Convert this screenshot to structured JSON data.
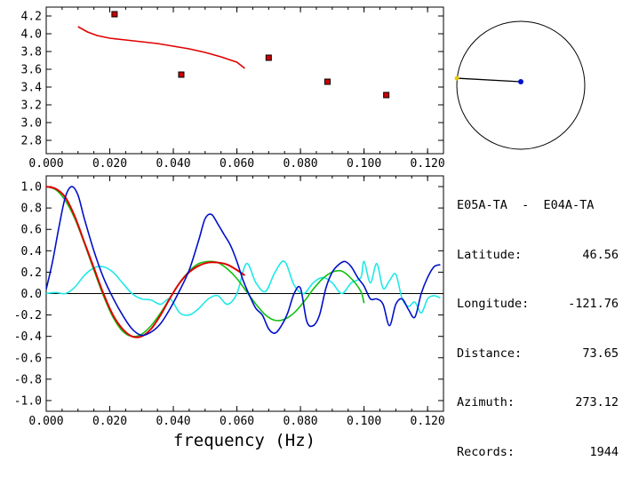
{
  "colors": {
    "red": "#e00000",
    "blue": "#0010c8",
    "green": "#10c010",
    "cyan": "#20e8e8",
    "marker_fill": "#cc0000",
    "azimuth_point": "#e8c800"
  },
  "chart_data": [
    {
      "type": "scatter",
      "description_ref": "top dispersion panel",
      "xlim": [
        0.0,
        0.125
      ],
      "ylim": [
        2.65,
        4.3
      ],
      "x_ticks": [
        "0.000",
        "0.020",
        "0.040",
        "0.060",
        "0.080",
        "0.100",
        "0.120"
      ],
      "y_ticks": [
        "2.8",
        "3.0",
        "3.2",
        "3.4",
        "3.6",
        "3.8",
        "4.0",
        "4.2"
      ],
      "series": [
        {
          "kind": "points",
          "color": "#cc0000",
          "x": [
            0.0215,
            0.0425,
            0.07,
            0.0885,
            0.107
          ],
          "y": [
            4.22,
            3.54,
            3.73,
            3.46,
            3.31
          ]
        },
        {
          "kind": "line",
          "color": "#e00000",
          "x": [
            0.01,
            0.013,
            0.016,
            0.02,
            0.025,
            0.03,
            0.035,
            0.04,
            0.045,
            0.05,
            0.055,
            0.06,
            0.0625
          ],
          "y": [
            4.08,
            4.02,
            3.98,
            3.95,
            3.93,
            3.91,
            3.89,
            3.86,
            3.83,
            3.79,
            3.74,
            3.68,
            3.61
          ]
        }
      ]
    },
    {
      "type": "line",
      "xlim": [
        0.0,
        0.125
      ],
      "ylim": [
        -1.1,
        1.1
      ],
      "x_ticks": [
        "0.000",
        "0.020",
        "0.040",
        "0.060",
        "0.080",
        "0.100",
        "0.120"
      ],
      "y_ticks": [
        "1.0",
        "0.8",
        "0.6",
        "0.4",
        "0.2",
        "0.0",
        "-0.2",
        "-0.4",
        "-0.6",
        "-0.8",
        "-1.0"
      ],
      "xlabel": "frequency (Hz)",
      "zero_line": true,
      "series": [
        {
          "color": "#20e8e8",
          "x": [
            0.0,
            0.003,
            0.006,
            0.009,
            0.012,
            0.015,
            0.018,
            0.021,
            0.024,
            0.027,
            0.03,
            0.033,
            0.036,
            0.039,
            0.042,
            0.045,
            0.048,
            0.051,
            0.054,
            0.057,
            0.06,
            0.063,
            0.066,
            0.069,
            0.072,
            0.075,
            0.078,
            0.081,
            0.084,
            0.087,
            0.09,
            0.093,
            0.096,
            0.099,
            0.1,
            0.102,
            0.104,
            0.106,
            0.108,
            0.11,
            0.112,
            0.114,
            0.116,
            0.118,
            0.12,
            0.122,
            0.124
          ],
          "y": [
            0.0,
            0.01,
            0.0,
            0.06,
            0.17,
            0.24,
            0.25,
            0.2,
            0.1,
            0.0,
            -0.05,
            -0.06,
            -0.1,
            -0.05,
            -0.18,
            -0.2,
            -0.14,
            -0.05,
            -0.02,
            -0.1,
            0.0,
            0.28,
            0.1,
            0.02,
            0.2,
            0.3,
            0.08,
            0.0,
            0.1,
            0.15,
            0.1,
            0.0,
            0.1,
            0.15,
            0.3,
            0.1,
            0.28,
            0.05,
            0.12,
            0.18,
            -0.05,
            -0.12,
            -0.08,
            -0.18,
            -0.05,
            -0.02,
            -0.04
          ]
        },
        {
          "color": "#10c010",
          "x": [
            0.0,
            0.003,
            0.006,
            0.009,
            0.012,
            0.015,
            0.018,
            0.021,
            0.024,
            0.027,
            0.03,
            0.033,
            0.036,
            0.039,
            0.042,
            0.045,
            0.048,
            0.051,
            0.054,
            0.057,
            0.06,
            0.063,
            0.066,
            0.069,
            0.072,
            0.075,
            0.078,
            0.081,
            0.084,
            0.087,
            0.09,
            0.093,
            0.096,
            0.099,
            0.1
          ],
          "y": [
            1.0,
            0.97,
            0.87,
            0.7,
            0.47,
            0.22,
            -0.02,
            -0.22,
            -0.35,
            -0.4,
            -0.38,
            -0.3,
            -0.18,
            -0.04,
            0.1,
            0.21,
            0.28,
            0.3,
            0.29,
            0.23,
            0.14,
            0.02,
            -0.1,
            -0.2,
            -0.25,
            -0.24,
            -0.18,
            -0.08,
            0.04,
            0.14,
            0.2,
            0.21,
            0.14,
            0.02,
            -0.09
          ]
        },
        {
          "color": "#e00000",
          "x": [
            0.0,
            0.003,
            0.006,
            0.009,
            0.012,
            0.015,
            0.018,
            0.021,
            0.024,
            0.027,
            0.03,
            0.033,
            0.036,
            0.039,
            0.042,
            0.045,
            0.048,
            0.051,
            0.054,
            0.057,
            0.06,
            0.0625
          ],
          "y": [
            1.0,
            0.98,
            0.9,
            0.72,
            0.48,
            0.24,
            0.0,
            -0.2,
            -0.33,
            -0.4,
            -0.4,
            -0.33,
            -0.2,
            -0.04,
            0.1,
            0.2,
            0.26,
            0.29,
            0.29,
            0.27,
            0.22,
            0.17
          ]
        },
        {
          "color": "#0010c8",
          "x": [
            0.0,
            0.002,
            0.004,
            0.006,
            0.008,
            0.01,
            0.012,
            0.015,
            0.018,
            0.021,
            0.024,
            0.027,
            0.03,
            0.033,
            0.036,
            0.039,
            0.042,
            0.045,
            0.048,
            0.05,
            0.052,
            0.054,
            0.056,
            0.058,
            0.06,
            0.062,
            0.064,
            0.066,
            0.068,
            0.07,
            0.072,
            0.074,
            0.076,
            0.078,
            0.08,
            0.082,
            0.084,
            0.086,
            0.088,
            0.09,
            0.092,
            0.094,
            0.096,
            0.098,
            0.1,
            0.102,
            0.104,
            0.106,
            0.108,
            0.11,
            0.112,
            0.114,
            0.116,
            0.118,
            0.12,
            0.122,
            0.124
          ],
          "y": [
            0.04,
            0.3,
            0.62,
            0.9,
            1.0,
            0.92,
            0.7,
            0.4,
            0.15,
            -0.04,
            -0.2,
            -0.33,
            -0.39,
            -0.36,
            -0.28,
            -0.14,
            0.03,
            0.22,
            0.5,
            0.7,
            0.74,
            0.65,
            0.55,
            0.45,
            0.3,
            0.12,
            -0.02,
            -0.14,
            -0.2,
            -0.33,
            -0.37,
            -0.3,
            -0.18,
            0.0,
            0.05,
            -0.26,
            -0.3,
            -0.2,
            0.05,
            0.2,
            0.27,
            0.3,
            0.25,
            0.15,
            0.07,
            -0.05,
            -0.05,
            -0.1,
            -0.3,
            -0.1,
            -0.05,
            -0.15,
            -0.22,
            0.0,
            0.15,
            0.25,
            0.27
          ]
        }
      ]
    },
    {
      "type": "scatter",
      "description_ref": "azimuth circle",
      "azimuth": 273.12
    }
  ],
  "station": {
    "header": "E05A-TA  -  E04A-TA",
    "rows": [
      {
        "label": "Latitude:",
        "value": "46.56"
      },
      {
        "label": "Longitude:",
        "value": "-121.76"
      },
      {
        "label": "Distance:",
        "value": "73.65"
      },
      {
        "label": "Azimuth:",
        "value": "273.12"
      },
      {
        "label": "Records:",
        "value": "1944"
      }
    ]
  }
}
